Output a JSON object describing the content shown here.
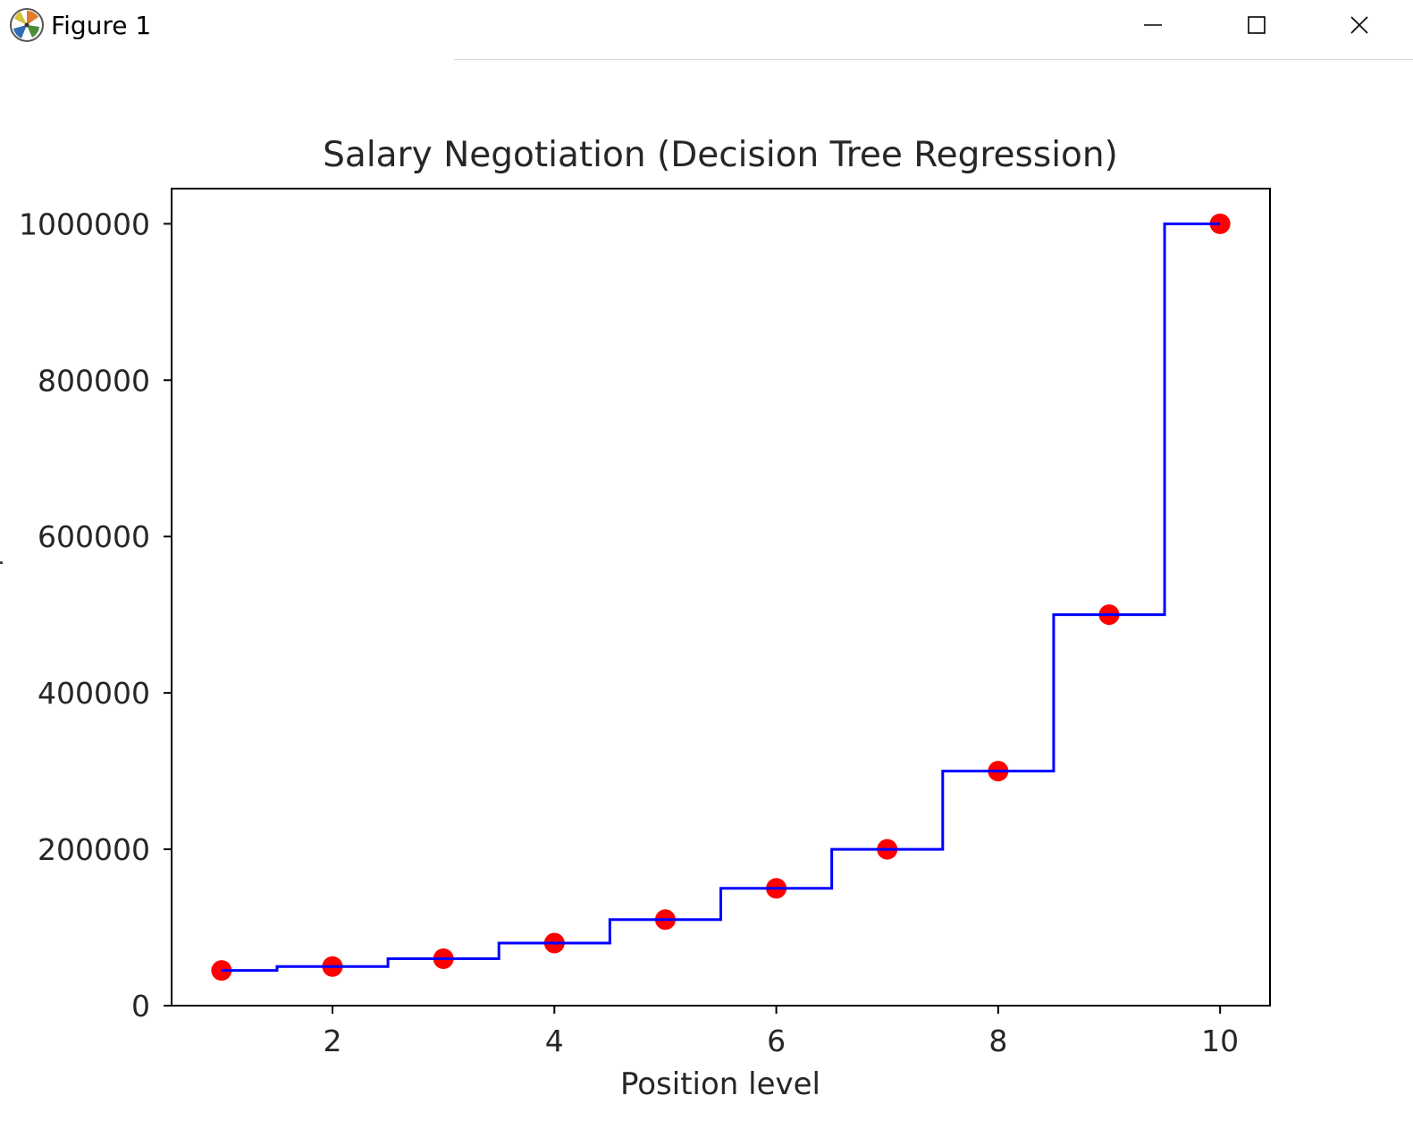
{
  "window": {
    "title": "Figure 1",
    "icon": "matplotlib-logo-icon",
    "controls": [
      "minimize-icon",
      "maximize-icon",
      "close-icon"
    ]
  },
  "chart_data": {
    "type": "scatter",
    "title": "Salary Negotiation (Decision Tree Regression)",
    "xlabel": "Position level",
    "ylabel": "",
    "xlim": [
      0.55,
      10.45
    ],
    "ylim": [
      0,
      1045000
    ],
    "xticks": [
      2,
      4,
      6,
      8,
      10
    ],
    "yticks": [
      0,
      200000,
      400000,
      600000,
      800000,
      1000000
    ],
    "grid": false,
    "series": [
      {
        "kind": "scatter",
        "color": "#ff0000",
        "x": [
          1,
          2,
          3,
          4,
          5,
          6,
          7,
          8,
          9,
          10
        ],
        "y": [
          45000,
          50000,
          60000,
          80000,
          110000,
          150000,
          200000,
          300000,
          500000,
          1000000
        ]
      },
      {
        "kind": "step",
        "color": "#0000ff",
        "x_start": 1,
        "x_end": 10,
        "breaks": [
          1.5,
          2.5,
          3.5,
          4.5,
          5.5,
          6.5,
          7.5,
          8.5,
          9.5
        ],
        "levels": [
          45000,
          50000,
          60000,
          80000,
          110000,
          150000,
          200000,
          300000,
          500000,
          1000000
        ]
      }
    ]
  }
}
